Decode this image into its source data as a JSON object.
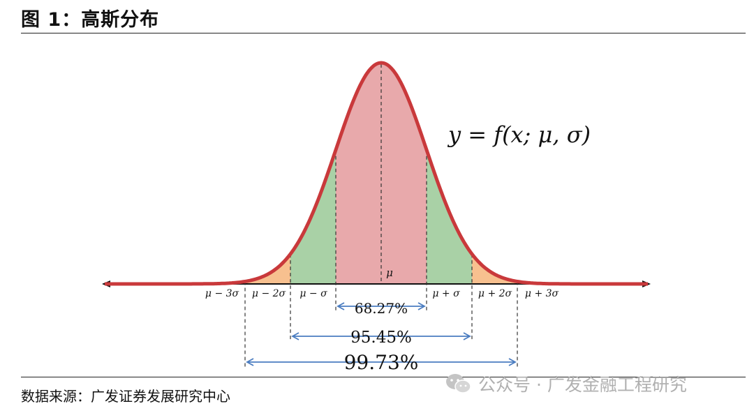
{
  "figure": {
    "title": "图 1：高斯分布",
    "source": "数据来源：广发证券发展研究中心",
    "watermark": "公众号 · 广发金融工程研究",
    "watermark_icon": "wechat-icon"
  },
  "diagram": {
    "formula": "y = f(x; μ, σ)",
    "mu_label": "μ",
    "tick_labels": [
      "μ − 3σ",
      "μ − 2σ",
      "μ − σ",
      "μ + σ",
      "μ + 2σ",
      "μ + 3σ"
    ],
    "intervals": [
      {
        "label": "68.27%",
        "range": "μ ± σ"
      },
      {
        "label": "95.45%",
        "range": "μ ± 2σ"
      },
      {
        "label": "99.73%",
        "range": "μ ± 3σ"
      }
    ],
    "colors": {
      "curve": "#c9393b",
      "band_1sigma": "#e8a9ab",
      "band_2sigma": "#a9d1a6",
      "band_3sigma": "#f7c08f",
      "arrow": "#4a7cc0",
      "axis": "#111111"
    }
  }
}
